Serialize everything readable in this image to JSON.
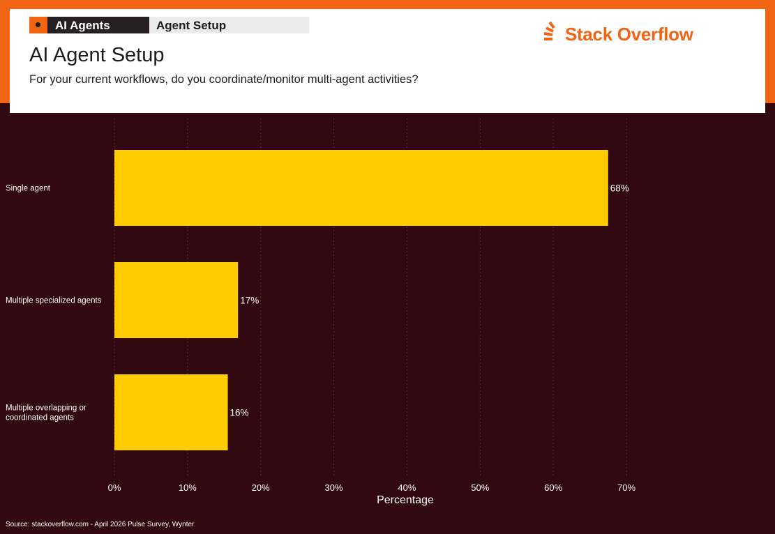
{
  "header": {
    "tag_primary": "AI Agents",
    "tag_secondary": "Agent Setup",
    "title": "AI Agent Setup",
    "subtitle": "For your current workflows, do you coordinate/monitor multi-agent activities?",
    "brand_name": "Stack Overflow",
    "brand_icon": "stack-overflow-logo-icon"
  },
  "colors": {
    "background": "#310810",
    "accent": "#f06414",
    "bar": "#ffcc00",
    "grid": "#5a2a33",
    "text": "#ffffff"
  },
  "chart_data": {
    "type": "bar",
    "orientation": "horizontal",
    "categories": [
      "Single agent",
      "Multiple specialized agents",
      "Multiple overlapping or coordinated agents"
    ],
    "category_lines": [
      [
        "Single agent"
      ],
      [
        "Multiple specialized agents"
      ],
      [
        "Multiple overlapping or",
        "coordinated agents"
      ]
    ],
    "values": [
      67.5,
      16.9,
      15.5
    ],
    "data_labels": [
      "68%",
      "17%",
      "16%"
    ],
    "xlabel": "Percentage",
    "ylabel": "",
    "xlim": [
      0,
      70
    ],
    "xticks": [
      0,
      10,
      20,
      30,
      40,
      50,
      60,
      70
    ],
    "xtick_labels": [
      "0%",
      "10%",
      "20%",
      "30%",
      "40%",
      "50%",
      "60%",
      "70%"
    ],
    "grid": true,
    "legend": "none"
  },
  "footer": {
    "source": "Source: stackoverflow.com - April 2026 Pulse Survey, Wynter"
  }
}
